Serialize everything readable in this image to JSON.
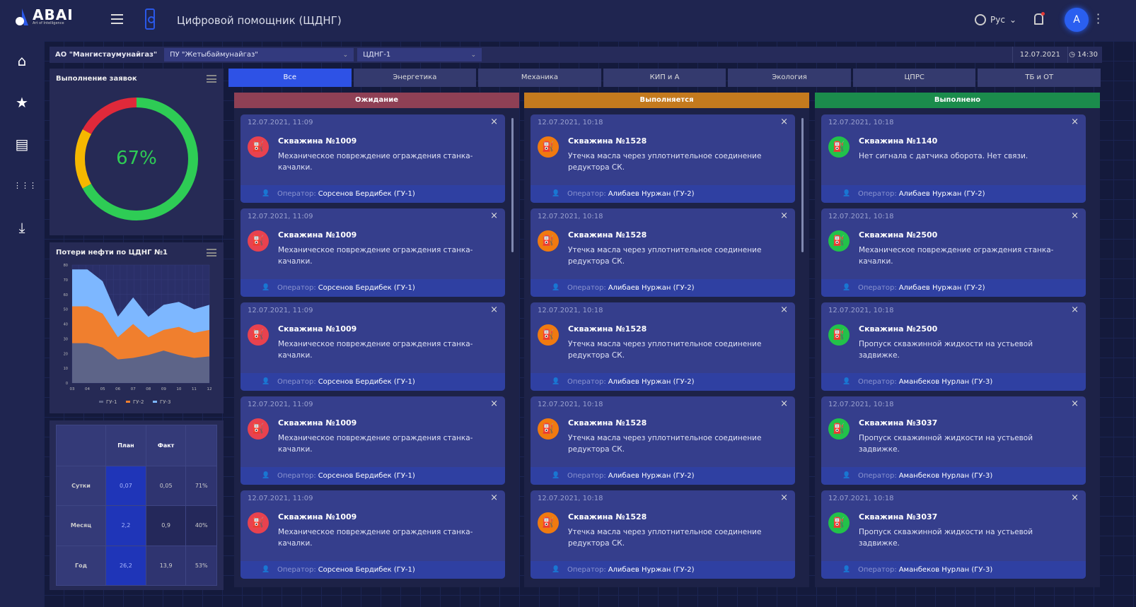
{
  "header": {
    "logo": "ABAI",
    "logo_sub": "Art of Intelligence",
    "app_title": "Цифровой помощник (ЩДНГ)",
    "language": "Рус",
    "avatar_initial": "A"
  },
  "sidebar": {
    "items": [
      {
        "icon": "home-icon",
        "glyph": "⌂"
      },
      {
        "icon": "star-icon",
        "glyph": "★"
      },
      {
        "icon": "document-icon",
        "glyph": "▤"
      },
      {
        "icon": "grid-icon",
        "glyph": "⋮⋮⋮"
      },
      {
        "icon": "download-icon",
        "glyph": "⤓"
      }
    ]
  },
  "filter": {
    "org": "АО \"Мангистаумунайгаз\"",
    "division": "ПУ \"Жетыбаймунайгаз\"",
    "field": "ЦДНГ-1",
    "date": "12.07.2021",
    "time": "14:30"
  },
  "donut": {
    "title": "Выполнение заявок",
    "value_label": "67%",
    "segments": [
      {
        "name": "done",
        "percent": 67,
        "color": "#2ecc55"
      },
      {
        "name": "in-progress",
        "percent": 16,
        "color": "#f5b800"
      },
      {
        "name": "waiting",
        "percent": 17,
        "color": "#e0293a"
      }
    ]
  },
  "chart_data": {
    "type": "area",
    "title": "Потери нефти по ЦДНГ №1",
    "x": [
      "03",
      "04",
      "05",
      "06",
      "07",
      "08",
      "09",
      "10",
      "11",
      "12"
    ],
    "ylim": [
      0,
      80
    ],
    "yticks": [
      0,
      10,
      20,
      30,
      40,
      50,
      60,
      70,
      80
    ],
    "stacked": true,
    "legend_position": "bottom",
    "series": [
      {
        "name": "ГУ-1",
        "color": "#5d6488",
        "values": [
          27,
          27,
          24,
          16,
          17,
          19,
          22,
          19,
          17,
          18
        ]
      },
      {
        "name": "ГУ-2",
        "color": "#f07f2e",
        "values": [
          25,
          25,
          23,
          15,
          23,
          12,
          14,
          19,
          17,
          18
        ]
      },
      {
        "name": "ГУ-3",
        "color": "#7db7ff",
        "values": [
          25,
          25,
          22,
          14,
          18,
          14,
          17,
          17,
          16,
          17
        ]
      }
    ]
  },
  "summary_table": {
    "headers": [
      "",
      "План",
      "Факт",
      ""
    ],
    "rows": [
      [
        "Сутки",
        "0,07",
        "0,05",
        "71%"
      ],
      [
        "Месяц",
        "2,2",
        "0,9",
        "40%"
      ],
      [
        "Год",
        "26,2",
        "13,9",
        "53%"
      ]
    ]
  },
  "tabs": [
    {
      "label": "Все",
      "active": true
    },
    {
      "label": "Энергетика"
    },
    {
      "label": "Механика"
    },
    {
      "label": "КИП и А"
    },
    {
      "label": "Экология"
    },
    {
      "label": "ЦПРС"
    },
    {
      "label": "ТБ и ОТ"
    }
  ],
  "operator_label": "Оператор:",
  "columns": [
    {
      "title": "Ожидание",
      "color": "#8f4055",
      "icon_color": "#e8424f",
      "cards": [
        {
          "date": "12.07.2021, 11:09",
          "title": "Скважина №1009",
          "desc": "Механическое повреждение ограждения станка-качалки.",
          "operator": "Сорсенов Бердибек (ГУ-1)"
        },
        {
          "date": "12.07.2021, 11:09",
          "title": "Скважина №1009",
          "desc": "Механическое повреждение ограждения станка-качалки.",
          "operator": "Сорсенов Бердибек (ГУ-1)"
        },
        {
          "date": "12.07.2021, 11:09",
          "title": "Скважина №1009",
          "desc": "Механическое повреждение ограждения станка-качалки.",
          "operator": "Сорсенов Бердибек (ГУ-1)"
        },
        {
          "date": "12.07.2021, 11:09",
          "title": "Скважина №1009",
          "desc": "Механическое повреждение ограждения станка-качалки.",
          "operator": "Сорсенов Бердибек (ГУ-1)"
        },
        {
          "date": "12.07.2021, 11:09",
          "title": "Скважина №1009",
          "desc": "Механическое повреждение ограждения станка-качалки.",
          "operator": "Сорсенов Бердибек (ГУ-1)"
        }
      ]
    },
    {
      "title": "Выполняется",
      "color": "#c47a1e",
      "icon_color": "#f07a10",
      "cards": [
        {
          "date": "12.07.2021, 10:18",
          "title": "Скважина №1528",
          "desc": "Утечка масла через уплотнительное соединение редуктора СК.",
          "operator": "Алибаев Нуржан (ГУ-2)"
        },
        {
          "date": "12.07.2021, 10:18",
          "title": "Скважина №1528",
          "desc": "Утечка масла через уплотнительное соединение редуктора СК.",
          "operator": "Алибаев Нуржан (ГУ-2)"
        },
        {
          "date": "12.07.2021, 10:18",
          "title": "Скважина №1528",
          "desc": "Утечка масла через уплотнительное соединение редуктора СК.",
          "operator": "Алибаев Нуржан (ГУ-2)"
        },
        {
          "date": "12.07.2021, 10:18",
          "title": "Скважина №1528",
          "desc": "Утечка масла через уплотнительное соединение редуктора СК.",
          "operator": "Алибаев Нуржан (ГУ-2)"
        },
        {
          "date": "12.07.2021, 10:18",
          "title": "Скважина №1528",
          "desc": "Утечка масла через уплотнительное соединение редуктора СК.",
          "operator": "Алибаев Нуржан (ГУ-2)"
        }
      ]
    },
    {
      "title": "Выполнено",
      "color": "#1b8c4c",
      "icon_color": "#22c24a",
      "cards": [
        {
          "date": "12.07.2021, 10:18",
          "title": "Скважина №1140",
          "desc": "Нет сигнала с датчика оборота. Нет связи.",
          "operator": "Алибаев Нуржан (ГУ-2)"
        },
        {
          "date": "12.07.2021, 10:18",
          "title": "Скважина №2500",
          "desc": "Механическое повреждение ограждения станка-качалки.",
          "operator": "Алибаев Нуржан (ГУ-2)"
        },
        {
          "date": "12.07.2021, 10:18",
          "title": "Скважина №2500",
          "desc": "Пропуск скважинной жидкости на устьевой задвижке.",
          "operator": "Аманбеков Нурлан (ГУ-3)"
        },
        {
          "date": "12.07.2021, 10:18",
          "title": "Скважина №3037",
          "desc": "Пропуск скважинной жидкости на устьевой задвижке.",
          "operator": "Аманбеков Нурлан (ГУ-3)"
        },
        {
          "date": "12.07.2021, 10:18",
          "title": "Скважина №3037",
          "desc": "Пропуск скважинной жидкости на устьевой задвижке.",
          "operator": "Аманбеков Нурлан (ГУ-3)"
        }
      ]
    }
  ]
}
